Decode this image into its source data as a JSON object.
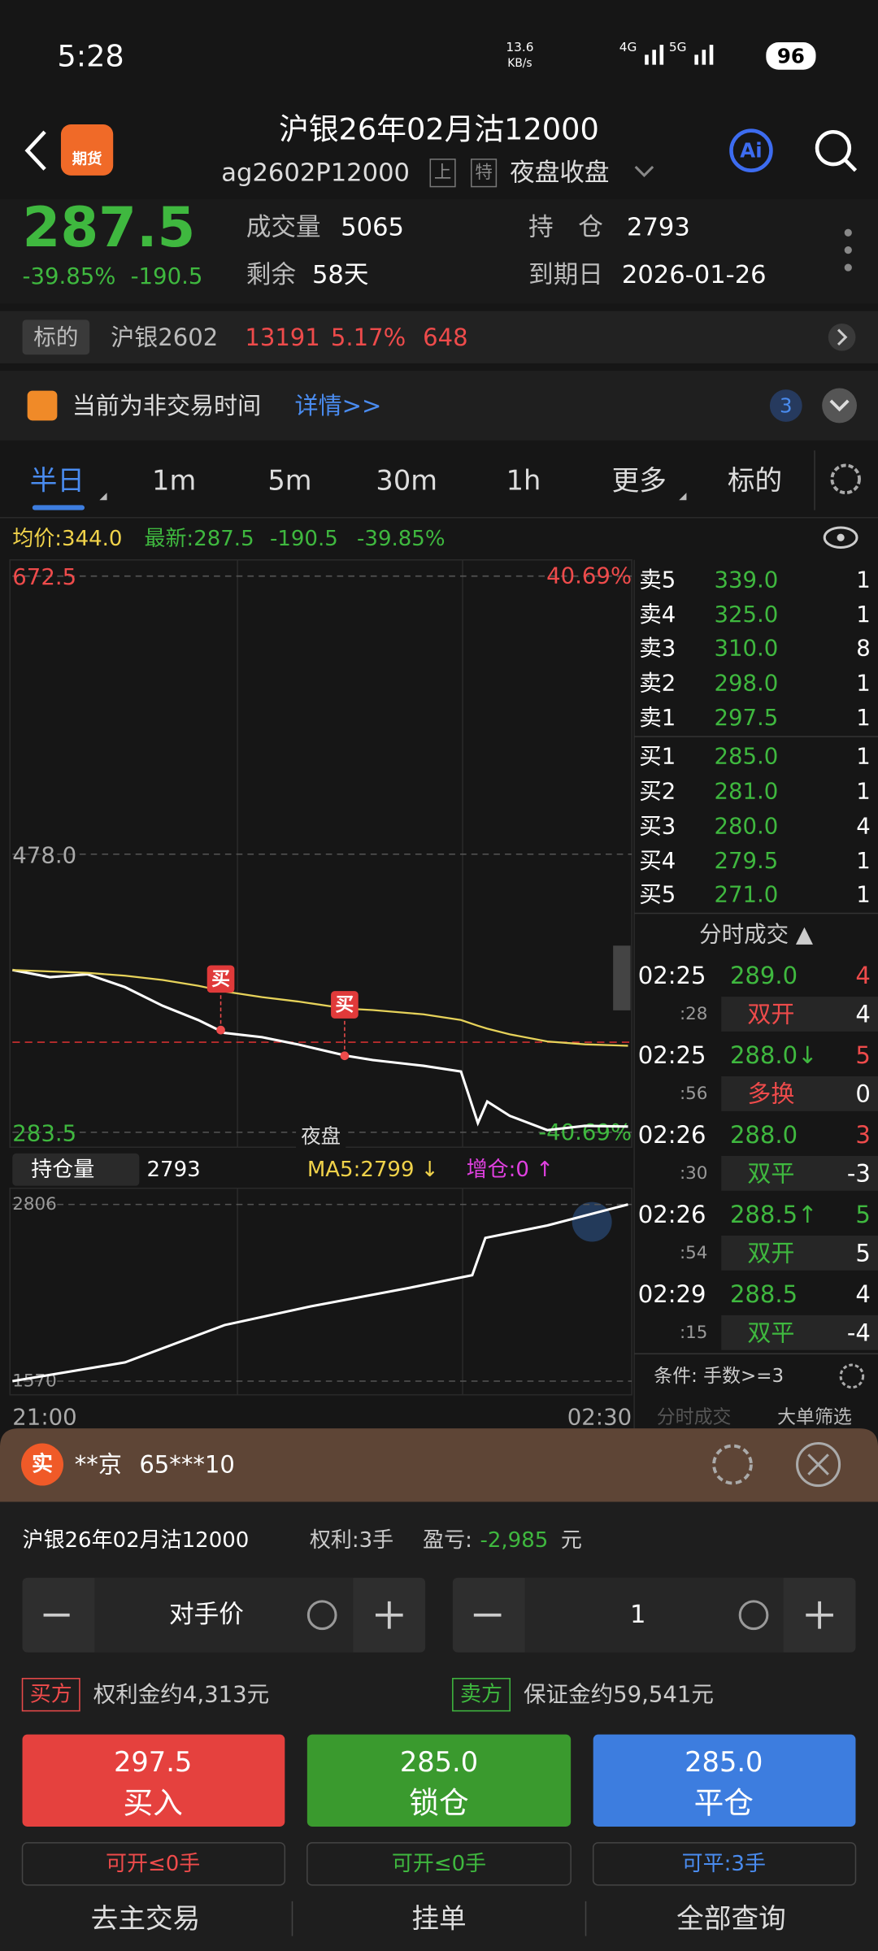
{
  "status_bar": {
    "time": "5:28",
    "net_speed": "13.6",
    "net_unit": "KB/s",
    "signal_1": "4G",
    "signal_2": "5G",
    "battery": "96"
  },
  "header": {
    "logo": "期货",
    "title": "沪银26年02月沽12000",
    "code": "ag2602P12000",
    "tag_1": "上",
    "tag_2": "特",
    "session": "夜盘收盘",
    "ai": "Ai"
  },
  "quote": {
    "price": "287.5",
    "change_pct": "-39.85%",
    "change": "-190.5",
    "volume_label": "成交量",
    "volume": "5065",
    "remaining_label": "剩余",
    "remaining": "58天",
    "oi_label": "持　仓",
    "oi": "2793",
    "expiry_label": "到期日",
    "expiry": "2026-01-26"
  },
  "underlying": {
    "label": "标的",
    "name": "沪银2602",
    "price": "13191",
    "pct": "5.17%",
    "change": "648"
  },
  "notice": {
    "text": "当前为非交易时间",
    "link": "详情>>",
    "count": "3"
  },
  "tabs": [
    "半日",
    "1m",
    "5m",
    "30m",
    "1h",
    "更多",
    "标的"
  ],
  "chart_info": {
    "avg": "均价:344.0",
    "last": "最新:287.5",
    "change": "-190.5",
    "pct": "-39.85%"
  },
  "chart_data": [
    {
      "type": "line",
      "x": [
        0,
        20,
        40,
        60,
        80,
        99,
        113,
        133,
        152,
        178,
        192,
        219,
        239,
        248,
        253,
        265,
        285,
        305,
        328
      ],
      "series": [
        {
          "color": "#ffffff",
          "values": [
            397,
            392,
            394,
            385,
            372,
            362,
            353,
            350,
            345,
            337,
            334,
            330,
            326,
            290,
            305,
            295,
            285,
            288,
            287.5
          ]
        },
        {
          "color": "#e6d25a",
          "values": [
            397,
            396,
            395,
            393,
            390,
            386,
            382,
            378,
            375,
            370,
            369,
            366,
            362,
            358,
            356,
            352,
            347,
            345,
            344
          ]
        }
      ],
      "xlim": [
        0,
        330
      ],
      "xticks": [
        {
          "value": 0,
          "label": "21:00"
        },
        {
          "value": 330,
          "label": "02:30"
        }
      ],
      "ylim": [
        283.5,
        672.5
      ],
      "yticks": [
        672.5,
        {
          "value": 478,
          "label": "478.0"
        },
        283.5
      ],
      "y2lim": [
        -40.69,
        40.69
      ],
      "y2ticks": [
        {
          "value": 40.69,
          "label": "40.69%"
        },
        {
          "value": -40.69,
          "label": "-40.69%"
        }
      ],
      "annotations": [
        {
          "text": "买",
          "x": 111,
          "y": 355
        },
        {
          "text": "买",
          "x": 177,
          "y": 337
        }
      ],
      "cost_line": 346.5,
      "session_label": "夜盘"
    },
    {
      "type": "line",
      "x": [
        0,
        60,
        113,
        159,
        212,
        245,
        252,
        285,
        328
      ],
      "series": [
        {
          "color": "#ffffff",
          "values": [
            1570,
            1701,
            1962,
            2093,
            2224,
            2311,
            2572,
            2659,
            2806
          ]
        }
      ],
      "xlim": [
        0,
        330
      ],
      "ylim": [
        1570,
        2806
      ],
      "yticks": [
        2806,
        1570
      ]
    }
  ],
  "oi_header": {
    "selector": "持仓量",
    "value": "2793",
    "ma5": "MA5:2799 ↓",
    "increase": "增仓:0 ↑"
  },
  "order_book": {
    "asks": [
      {
        "label": "卖5",
        "price": "339.0",
        "qty": "1"
      },
      {
        "label": "卖4",
        "price": "325.0",
        "qty": "1"
      },
      {
        "label": "卖3",
        "price": "310.0",
        "qty": "8"
      },
      {
        "label": "卖2",
        "price": "298.0",
        "qty": "1"
      },
      {
        "label": "卖1",
        "price": "297.5",
        "qty": "1"
      }
    ],
    "bids": [
      {
        "label": "买1",
        "price": "285.0",
        "qty": "1"
      },
      {
        "label": "买2",
        "price": "281.0",
        "qty": "1"
      },
      {
        "label": "买3",
        "price": "280.0",
        "qty": "4"
      },
      {
        "label": "买4",
        "price": "279.5",
        "qty": "1"
      },
      {
        "label": "买5",
        "price": "271.0",
        "qty": "1"
      }
    ]
  },
  "trades": {
    "title": "分时成交 ▲",
    "rows": [
      {
        "time": "02:25",
        "price": "289.0",
        "qty": "4",
        "sec": ":28",
        "kind": "双开",
        "count": "4"
      },
      {
        "time": "02:25",
        "price": "288.0↓",
        "qty": "5",
        "sec": ":56",
        "kind": "多换",
        "count": "0"
      },
      {
        "time": "02:26",
        "price": "288.0",
        "qty": "3",
        "sec": ":30",
        "kind": "双平",
        "count": "-3"
      },
      {
        "time": "02:26",
        "price": "288.5↑",
        "qty": "5",
        "sec": ":54",
        "kind": "双开",
        "count": "5"
      },
      {
        "time": "02:29",
        "price": "288.5",
        "qty": "4",
        "sec": ":15",
        "kind": "双平",
        "count": "-4"
      }
    ],
    "filter": "条件: 手数>=3",
    "tab_1": "分时成交",
    "tab_2": "大单筛选"
  },
  "trade_panel": {
    "badge": "实",
    "account_name": "**京",
    "account_id": "65***10",
    "contract": "沪银26年02月沽12000",
    "position": "权利:3手",
    "pnl_label": "盈亏:",
    "pnl": "-2,985",
    "pnl_unit": "元",
    "price_mode": "对手价",
    "quantity": "1",
    "buyer_tag": "买方",
    "buyer_text": "权利金约4,313元",
    "seller_tag": "卖方",
    "seller_text": "保证金约59,541元",
    "buttons": [
      {
        "price": "297.5",
        "action": "买入",
        "limit": "可开≤0手"
      },
      {
        "price": "285.0",
        "action": "锁仓",
        "limit": "可开≤0手"
      },
      {
        "price": "285.0",
        "action": "平仓",
        "limit": "可平:3手"
      }
    ]
  },
  "bottom_nav": [
    "去主交易",
    "挂单",
    "全部查询"
  ]
}
